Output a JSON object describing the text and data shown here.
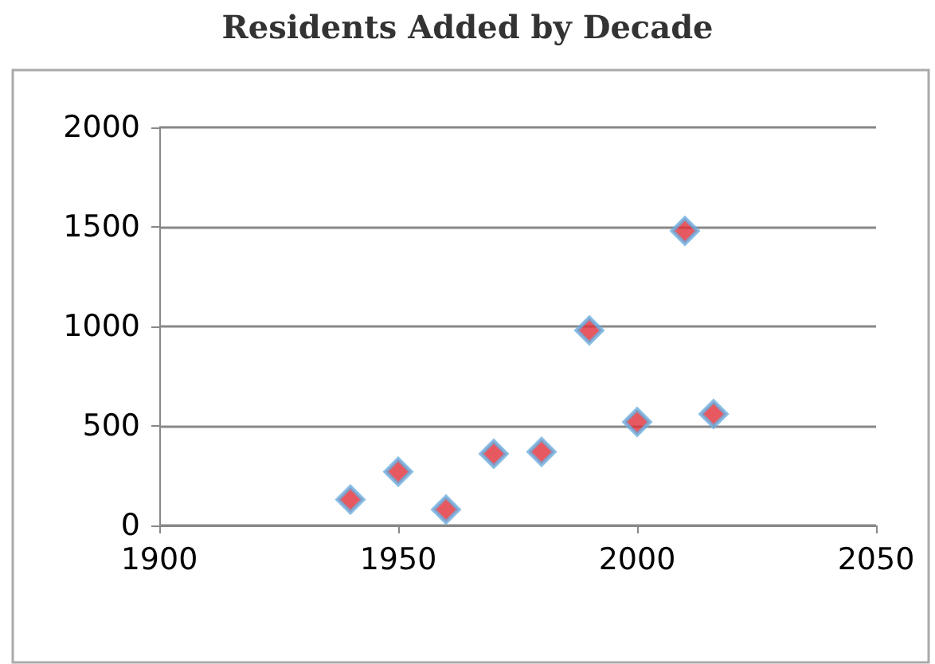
{
  "chart_data": {
    "type": "scatter",
    "title": "Residents Added by Decade",
    "x": [
      1940,
      1950,
      1960,
      1970,
      1980,
      1990,
      2000,
      2010,
      2016
    ],
    "values": [
      130,
      270,
      80,
      360,
      370,
      980,
      520,
      1480,
      560
    ],
    "color": "#e0303a",
    "xlim": [
      1900,
      2050
    ],
    "xticks": [
      1900,
      1950,
      2000,
      2050
    ],
    "ylim": [
      0,
      2000
    ],
    "yticks": [
      0,
      500,
      1000,
      1500,
      2000
    ],
    "grid": "y",
    "marker": "diamond"
  }
}
